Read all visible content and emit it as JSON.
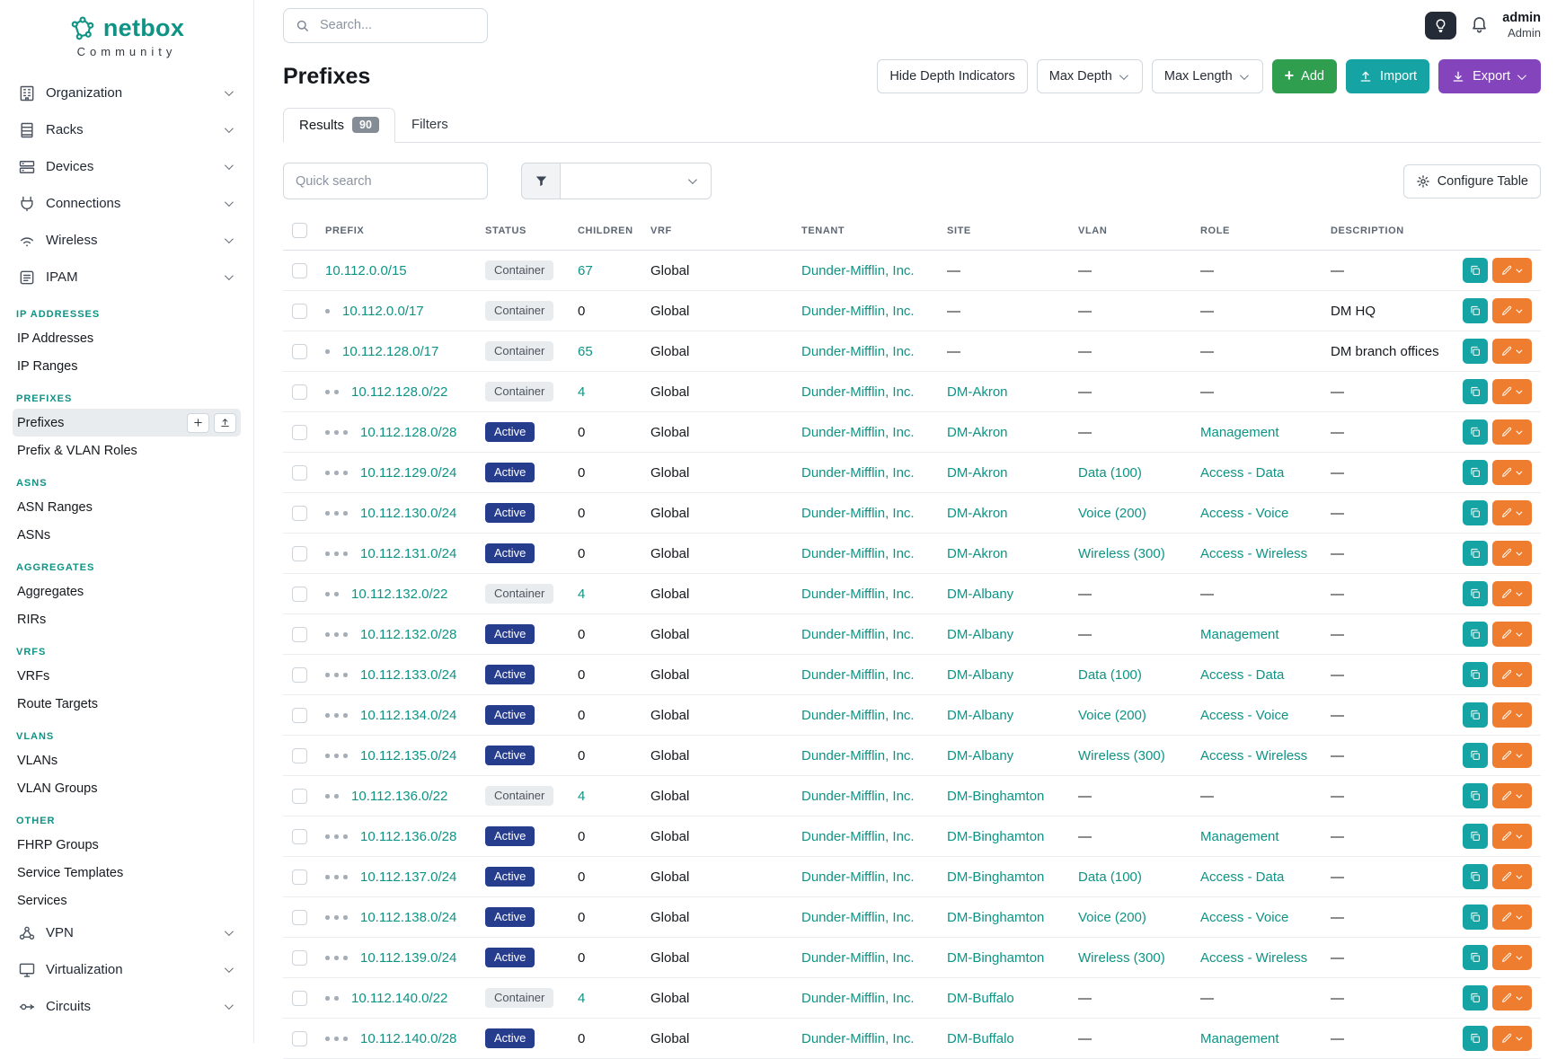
{
  "brand": {
    "name": "netbox",
    "subtitle": "Community"
  },
  "topbar": {
    "search_placeholder": "Search...",
    "user_name": "admin",
    "user_role": "Admin"
  },
  "sidebar": {
    "top_items": [
      {
        "label": "Organization",
        "icon": "building-icon"
      },
      {
        "label": "Racks",
        "icon": "rack-icon"
      },
      {
        "label": "Devices",
        "icon": "device-icon"
      },
      {
        "label": "Connections",
        "icon": "cable-icon"
      },
      {
        "label": "Wireless",
        "icon": "wifi-icon"
      },
      {
        "label": "IPAM",
        "icon": "ipam-icon"
      }
    ],
    "sections": [
      {
        "title": "IP ADDRESSES",
        "items": [
          {
            "label": "IP Addresses"
          },
          {
            "label": "IP Ranges"
          }
        ]
      },
      {
        "title": "PREFIXES",
        "items": [
          {
            "label": "Prefixes",
            "active": true
          },
          {
            "label": "Prefix & VLAN Roles"
          }
        ]
      },
      {
        "title": "ASNS",
        "items": [
          {
            "label": "ASN Ranges"
          },
          {
            "label": "ASNs"
          }
        ]
      },
      {
        "title": "AGGREGATES",
        "items": [
          {
            "label": "Aggregates"
          },
          {
            "label": "RIRs"
          }
        ]
      },
      {
        "title": "VRFS",
        "items": [
          {
            "label": "VRFs"
          },
          {
            "label": "Route Targets"
          }
        ]
      },
      {
        "title": "VLANS",
        "items": [
          {
            "label": "VLANs"
          },
          {
            "label": "VLAN Groups"
          }
        ]
      },
      {
        "title": "OTHER",
        "items": [
          {
            "label": "FHRP Groups"
          },
          {
            "label": "Service Templates"
          },
          {
            "label": "Services"
          }
        ]
      }
    ],
    "bottom_items": [
      {
        "label": "VPN",
        "icon": "vpn-icon"
      },
      {
        "label": "Virtualization",
        "icon": "virtualization-icon"
      },
      {
        "label": "Circuits",
        "icon": "circuit-icon"
      }
    ]
  },
  "page": {
    "title": "Prefixes",
    "controls": {
      "hide_depth": "Hide Depth Indicators",
      "max_depth": "Max Depth",
      "max_length": "Max Length",
      "add": "Add",
      "import": "Import",
      "export": "Export"
    },
    "tabs": [
      {
        "label": "Results",
        "badge": "90"
      },
      {
        "label": "Filters"
      }
    ],
    "quick_search_placeholder": "Quick search",
    "configure_table": "Configure Table"
  },
  "colors": {
    "accent_teal": "#0e9384",
    "add_green": "#2f9e4f",
    "import_teal": "#16a3a3",
    "export_purple": "#8445bc",
    "active_badge_blue": "#263c8d",
    "edit_orange": "#ef7d2f"
  },
  "table": {
    "columns": [
      "PREFIX",
      "STATUS",
      "CHILDREN",
      "VRF",
      "TENANT",
      "SITE",
      "VLAN",
      "ROLE",
      "DESCRIPTION"
    ],
    "rows": [
      {
        "depth": 0,
        "prefix": "10.112.0.0/15",
        "status": "Container",
        "children": "67",
        "vrf": "Global",
        "tenant": "Dunder-Mifflin, Inc.",
        "site": "—",
        "vlan": "—",
        "role": "—",
        "description": "—"
      },
      {
        "depth": 1,
        "prefix": "10.112.0.0/17",
        "status": "Container",
        "children": "0",
        "vrf": "Global",
        "tenant": "Dunder-Mifflin, Inc.",
        "site": "—",
        "vlan": "—",
        "role": "—",
        "description": "DM HQ"
      },
      {
        "depth": 1,
        "prefix": "10.112.128.0/17",
        "status": "Container",
        "children": "65",
        "vrf": "Global",
        "tenant": "Dunder-Mifflin, Inc.",
        "site": "—",
        "vlan": "—",
        "role": "—",
        "description": "DM branch offices"
      },
      {
        "depth": 2,
        "prefix": "10.112.128.0/22",
        "status": "Container",
        "children": "4",
        "vrf": "Global",
        "tenant": "Dunder-Mifflin, Inc.",
        "site": "DM-Akron",
        "vlan": "—",
        "role": "—",
        "description": "—"
      },
      {
        "depth": 3,
        "prefix": "10.112.128.0/28",
        "status": "Active",
        "children": "0",
        "vrf": "Global",
        "tenant": "Dunder-Mifflin, Inc.",
        "site": "DM-Akron",
        "vlan": "—",
        "role": "Management",
        "description": "—"
      },
      {
        "depth": 3,
        "prefix": "10.112.129.0/24",
        "status": "Active",
        "children": "0",
        "vrf": "Global",
        "tenant": "Dunder-Mifflin, Inc.",
        "site": "DM-Akron",
        "vlan": "Data (100)",
        "role": "Access - Data",
        "description": "—"
      },
      {
        "depth": 3,
        "prefix": "10.112.130.0/24",
        "status": "Active",
        "children": "0",
        "vrf": "Global",
        "tenant": "Dunder-Mifflin, Inc.",
        "site": "DM-Akron",
        "vlan": "Voice (200)",
        "role": "Access - Voice",
        "description": "—"
      },
      {
        "depth": 3,
        "prefix": "10.112.131.0/24",
        "status": "Active",
        "children": "0",
        "vrf": "Global",
        "tenant": "Dunder-Mifflin, Inc.",
        "site": "DM-Akron",
        "vlan": "Wireless (300)",
        "role": "Access - Wireless",
        "description": "—"
      },
      {
        "depth": 2,
        "prefix": "10.112.132.0/22",
        "status": "Container",
        "children": "4",
        "vrf": "Global",
        "tenant": "Dunder-Mifflin, Inc.",
        "site": "DM-Albany",
        "vlan": "—",
        "role": "—",
        "description": "—"
      },
      {
        "depth": 3,
        "prefix": "10.112.132.0/28",
        "status": "Active",
        "children": "0",
        "vrf": "Global",
        "tenant": "Dunder-Mifflin, Inc.",
        "site": "DM-Albany",
        "vlan": "—",
        "role": "Management",
        "description": "—"
      },
      {
        "depth": 3,
        "prefix": "10.112.133.0/24",
        "status": "Active",
        "children": "0",
        "vrf": "Global",
        "tenant": "Dunder-Mifflin, Inc.",
        "site": "DM-Albany",
        "vlan": "Data (100)",
        "role": "Access - Data",
        "description": "—"
      },
      {
        "depth": 3,
        "prefix": "10.112.134.0/24",
        "status": "Active",
        "children": "0",
        "vrf": "Global",
        "tenant": "Dunder-Mifflin, Inc.",
        "site": "DM-Albany",
        "vlan": "Voice (200)",
        "role": "Access - Voice",
        "description": "—"
      },
      {
        "depth": 3,
        "prefix": "10.112.135.0/24",
        "status": "Active",
        "children": "0",
        "vrf": "Global",
        "tenant": "Dunder-Mifflin, Inc.",
        "site": "DM-Albany",
        "vlan": "Wireless (300)",
        "role": "Access - Wireless",
        "description": "—"
      },
      {
        "depth": 2,
        "prefix": "10.112.136.0/22",
        "status": "Container",
        "children": "4",
        "vrf": "Global",
        "tenant": "Dunder-Mifflin, Inc.",
        "site": "DM-Binghamton",
        "vlan": "—",
        "role": "—",
        "description": "—"
      },
      {
        "depth": 3,
        "prefix": "10.112.136.0/28",
        "status": "Active",
        "children": "0",
        "vrf": "Global",
        "tenant": "Dunder-Mifflin, Inc.",
        "site": "DM-Binghamton",
        "vlan": "—",
        "role": "Management",
        "description": "—"
      },
      {
        "depth": 3,
        "prefix": "10.112.137.0/24",
        "status": "Active",
        "children": "0",
        "vrf": "Global",
        "tenant": "Dunder-Mifflin, Inc.",
        "site": "DM-Binghamton",
        "vlan": "Data (100)",
        "role": "Access - Data",
        "description": "—"
      },
      {
        "depth": 3,
        "prefix": "10.112.138.0/24",
        "status": "Active",
        "children": "0",
        "vrf": "Global",
        "tenant": "Dunder-Mifflin, Inc.",
        "site": "DM-Binghamton",
        "vlan": "Voice (200)",
        "role": "Access - Voice",
        "description": "—"
      },
      {
        "depth": 3,
        "prefix": "10.112.139.0/24",
        "status": "Active",
        "children": "0",
        "vrf": "Global",
        "tenant": "Dunder-Mifflin, Inc.",
        "site": "DM-Binghamton",
        "vlan": "Wireless (300)",
        "role": "Access - Wireless",
        "description": "—"
      },
      {
        "depth": 2,
        "prefix": "10.112.140.0/22",
        "status": "Container",
        "children": "4",
        "vrf": "Global",
        "tenant": "Dunder-Mifflin, Inc.",
        "site": "DM-Buffalo",
        "vlan": "—",
        "role": "—",
        "description": "—"
      },
      {
        "depth": 3,
        "prefix": "10.112.140.0/28",
        "status": "Active",
        "children": "0",
        "vrf": "Global",
        "tenant": "Dunder-Mifflin, Inc.",
        "site": "DM-Buffalo",
        "vlan": "—",
        "role": "Management",
        "description": "—"
      }
    ]
  }
}
